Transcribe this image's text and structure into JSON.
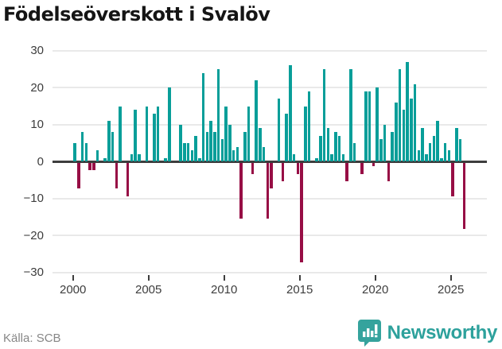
{
  "title": "Födelseöverskott i Svalöv",
  "footer": {
    "source_label": "Källa: SCB",
    "brand_name": "Newsworthy"
  },
  "colors": {
    "positive_bar": "#089e99",
    "negative_bar": "#970e45",
    "gridline": "#e9e9e9",
    "zero_line": "#3d3d3d",
    "axis_text": "#3d3d3d",
    "title_text": "#151515",
    "source_text": "#878787",
    "brand_teal": "#2da19c"
  },
  "chart_data": {
    "type": "bar",
    "title": "Födelseöverskott i Svalöv",
    "xlabel": "",
    "ylabel": "",
    "ylim": [
      -30,
      30
    ],
    "grid": true,
    "legend": "none",
    "frequency": "quarterly",
    "start_year": 2000,
    "y_tick_values": [
      30,
      20,
      10,
      0,
      -10,
      -20,
      -30
    ],
    "y_tick_labels": [
      "30",
      "20",
      "10",
      "0",
      "−10",
      "−20",
      "−30"
    ],
    "x_tick_years": [
      2000,
      2005,
      2010,
      2015,
      2020,
      2025
    ],
    "x_tick_labels": [
      "2000",
      "2005",
      "2010",
      "2015",
      "2020",
      "2025"
    ],
    "series": [
      {
        "year": 2000,
        "values": [
          5,
          -7,
          8,
          5
        ]
      },
      {
        "year": 2001,
        "values": [
          -2,
          -2,
          3,
          0
        ]
      },
      {
        "year": 2002,
        "values": [
          1,
          11,
          8,
          -7
        ]
      },
      {
        "year": 2003,
        "values": [
          15,
          0,
          -9,
          2
        ]
      },
      {
        "year": 2004,
        "values": [
          14,
          2,
          0,
          15
        ]
      },
      {
        "year": 2005,
        "values": [
          0,
          13,
          15,
          0
        ]
      },
      {
        "year": 2006,
        "values": [
          1,
          20,
          0,
          0
        ]
      },
      {
        "year": 2007,
        "values": [
          10,
          5,
          5,
          3
        ]
      },
      {
        "year": 2008,
        "values": [
          7,
          1,
          24,
          8
        ]
      },
      {
        "year": 2009,
        "values": [
          11,
          8,
          25,
          6
        ]
      },
      {
        "year": 2010,
        "values": [
          15,
          10,
          3,
          4
        ]
      },
      {
        "year": 2011,
        "values": [
          -15,
          8,
          15,
          -3
        ]
      },
      {
        "year": 2012,
        "values": [
          22,
          9,
          4,
          -15
        ]
      },
      {
        "year": 2013,
        "values": [
          -7,
          0,
          17,
          -5
        ]
      },
      {
        "year": 2014,
        "values": [
          13,
          26,
          2,
          -3
        ]
      },
      {
        "year": 2015,
        "values": [
          -27,
          15,
          19,
          0
        ]
      },
      {
        "year": 2016,
        "values": [
          1,
          7,
          25,
          9
        ]
      },
      {
        "year": 2017,
        "values": [
          2,
          8,
          7,
          2
        ]
      },
      {
        "year": 2018,
        "values": [
          -5,
          25,
          5,
          0
        ]
      },
      {
        "year": 2019,
        "values": [
          -3,
          19,
          19,
          -1
        ]
      },
      {
        "year": 2020,
        "values": [
          20,
          6,
          10,
          -5
        ]
      },
      {
        "year": 2021,
        "values": [
          8,
          16,
          25,
          14
        ]
      },
      {
        "year": 2022,
        "values": [
          27,
          17,
          21,
          3
        ]
      },
      {
        "year": 2023,
        "values": [
          9,
          2,
          5,
          7
        ]
      },
      {
        "year": 2024,
        "values": [
          11,
          1,
          5,
          3
        ]
      },
      {
        "year": 2025,
        "values": [
          -9,
          9,
          6,
          -18
        ]
      }
    ]
  }
}
